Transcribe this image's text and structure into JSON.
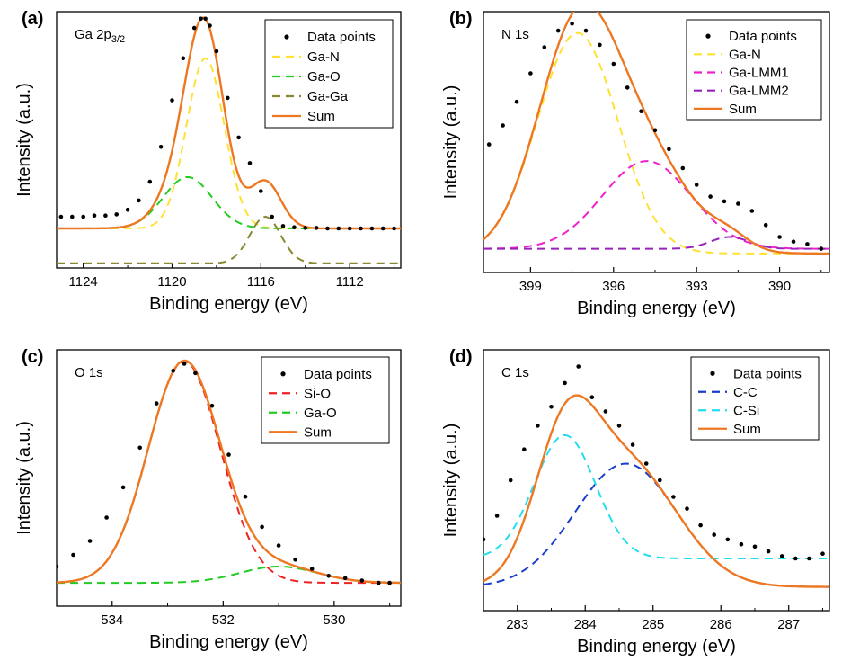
{
  "figure": {
    "panel_letters": [
      "(a)",
      "(b)",
      "(c)",
      "(d)"
    ]
  },
  "chart_data": [
    {
      "type": "scatter",
      "panel": "(a)",
      "region_label": {
        "main": "Ga 2p",
        "sub": "3/2"
      },
      "xlabel": "Binding energy (eV)",
      "ylabel": "Intensity (a.u.)",
      "xlim": [
        1125.2,
        1109.7
      ],
      "ylim": [
        0,
        1.1
      ],
      "xticks": [
        1124,
        1120,
        1116,
        1112
      ],
      "x_reversed": true,
      "legend_position": "top-right",
      "legend": [
        "Data points",
        "Ga-N",
        "Ga-O",
        "Ga-Ga",
        "Sum"
      ],
      "data_points": {
        "name": "Data points",
        "color": "#000000",
        "x": [
          1125,
          1124.5,
          1124,
          1123.5,
          1123,
          1122.5,
          1122,
          1121.5,
          1121,
          1120.5,
          1120,
          1119.5,
          1119,
          1118.7,
          1118.5,
          1118.3,
          1118,
          1117.5,
          1117,
          1116.5,
          1116,
          1115.5,
          1115,
          1114.5,
          1114,
          1113.5,
          1113,
          1112.5,
          1112,
          1111.5,
          1111,
          1110.5,
          1110
        ],
        "y": [
          0.22,
          0.22,
          0.22,
          0.225,
          0.225,
          0.23,
          0.25,
          0.29,
          0.37,
          0.52,
          0.72,
          0.9,
          1.03,
          1.07,
          1.07,
          1.04,
          0.93,
          0.73,
          0.56,
          0.45,
          0.33,
          0.22,
          0.18,
          0.175,
          0.172,
          0.172,
          0.17,
          0.17,
          0.17,
          0.17,
          0.17,
          0.17,
          0.17
        ]
      },
      "series": [
        {
          "name": "Ga-N",
          "color": "#ffe033",
          "dash": true,
          "peak": {
            "center": 1118.5,
            "amplitude": 0.73,
            "width": 0.85
          },
          "offset": 0.17
        },
        {
          "name": "Ga-O",
          "color": "#22cc22",
          "dash": true,
          "peak": {
            "center": 1119.3,
            "amplitude": 0.22,
            "width": 1.1
          },
          "offset": 0.17
        },
        {
          "name": "Ga-Ga",
          "color": "#888833",
          "dash": true,
          "peak": {
            "center": 1115.8,
            "amplitude": 0.2,
            "width": 0.7
          },
          "offset": 0.02
        },
        {
          "name": "Sum",
          "color": "#ee7722",
          "dash": false,
          "sum_of": [
            "Ga-N",
            "Ga-O",
            "Ga-Ga"
          ]
        }
      ]
    },
    {
      "type": "scatter",
      "panel": "(b)",
      "region_label": {
        "main": "N 1s",
        "sub": ""
      },
      "xlabel": "Binding energy (eV)",
      "ylabel": "Intensity (a.u.)",
      "xlim": [
        400.7,
        388.2
      ],
      "ylim": [
        0,
        1.1
      ],
      "xticks": [
        399,
        396,
        393,
        390
      ],
      "x_reversed": true,
      "legend_position": "top-right",
      "legend": [
        "Data points",
        "Ga-N",
        "Ga-LMM1",
        "Ga-LMM2",
        "Sum"
      ],
      "data_points": {
        "name": "Data points",
        "color": "#000000",
        "x": [
          400.5,
          400,
          399.5,
          399,
          398.5,
          398,
          397.5,
          397,
          396.5,
          396,
          395.5,
          395,
          394.5,
          394,
          393.5,
          393,
          392.5,
          392,
          391.5,
          391,
          390.5,
          390,
          389.5,
          389,
          388.5
        ],
        "y": [
          0.54,
          0.62,
          0.72,
          0.84,
          0.95,
          1.02,
          1.05,
          1.02,
          0.96,
          0.88,
          0.78,
          0.68,
          0.6,
          0.52,
          0.44,
          0.37,
          0.32,
          0.3,
          0.29,
          0.26,
          0.2,
          0.15,
          0.13,
          0.12,
          0.1
        ]
      },
      "series": [
        {
          "name": "Ga-N",
          "color": "#ffe033",
          "dash": true,
          "peak": {
            "center": 397.3,
            "amplitude": 0.93,
            "width": 1.45
          },
          "offset": 0.08
        },
        {
          "name": "Ga-LMM1",
          "color": "#ee22cc",
          "dash": true,
          "peak": {
            "center": 394.8,
            "amplitude": 0.37,
            "width": 1.6
          },
          "offset": 0.1
        },
        {
          "name": "Ga-LMM2",
          "color": "#9922bb",
          "dash": true,
          "peak": {
            "center": 391.8,
            "amplitude": 0.05,
            "width": 0.7
          },
          "offset": 0.1
        },
        {
          "name": "Sum",
          "color": "#ee7722",
          "dash": false,
          "sum_of": [
            "Ga-N",
            "Ga-LMM1",
            "Ga-LMM2"
          ]
        }
      ]
    },
    {
      "type": "scatter",
      "panel": "(c)",
      "region_label": {
        "main": "O 1s",
        "sub": ""
      },
      "xlabel": "Binding energy (eV)",
      "ylabel": "Intensity (a.u.)",
      "xlim": [
        535,
        528.8
      ],
      "ylim": [
        0,
        1.1
      ],
      "xticks": [
        534,
        532,
        530
      ],
      "x_reversed": true,
      "legend_position": "top-right",
      "legend": [
        "Data points",
        "Si-O",
        "Ga-O",
        "Sum"
      ],
      "data_points": {
        "name": "Data points",
        "color": "#000000",
        "x": [
          535,
          534.7,
          534.4,
          534.1,
          533.8,
          533.5,
          533.2,
          532.9,
          532.7,
          532.5,
          532.2,
          531.9,
          531.6,
          531.3,
          531,
          530.7,
          530.4,
          530.1,
          529.8,
          529.5,
          529.2,
          529
        ],
        "y": [
          0.17,
          0.22,
          0.28,
          0.38,
          0.51,
          0.68,
          0.87,
          1.01,
          1.04,
          1.0,
          0.86,
          0.65,
          0.47,
          0.34,
          0.26,
          0.2,
          0.16,
          0.13,
          0.12,
          0.11,
          0.1,
          0.1
        ]
      },
      "series": [
        {
          "name": "Si-O",
          "color": "#ee2222",
          "dash": true,
          "peak": {
            "center": 532.7,
            "amplitude": 0.95,
            "width": 0.65
          },
          "offset": 0.1
        },
        {
          "name": "Ga-O",
          "color": "#22cc22",
          "dash": true,
          "peak": {
            "center": 531,
            "amplitude": 0.07,
            "width": 0.7
          },
          "offset": 0.1
        },
        {
          "name": "Sum",
          "color": "#ee7722",
          "dash": false,
          "sum_of": [
            "Si-O",
            "Ga-O"
          ]
        }
      ]
    },
    {
      "type": "scatter",
      "panel": "(d)",
      "region_label": {
        "main": "C 1s",
        "sub": ""
      },
      "xlabel": "Binding energy (eV)",
      "ylabel": "Intensity (a.u.)",
      "xlim": [
        282.5,
        287.6
      ],
      "ylim": [
        0,
        1.1
      ],
      "xticks": [
        283,
        284,
        285,
        286,
        287
      ],
      "x_reversed": false,
      "legend_position": "top-right",
      "legend": [
        "Data points",
        "C-C",
        "C-Si",
        "Sum"
      ],
      "data_points": {
        "name": "Data points",
        "color": "#000000",
        "x": [
          282.5,
          282.7,
          282.9,
          283.1,
          283.3,
          283.5,
          283.7,
          283.9,
          284.1,
          284.3,
          284.5,
          284.7,
          284.9,
          285.1,
          285.3,
          285.5,
          285.7,
          285.9,
          286.1,
          286.3,
          286.5,
          286.7,
          286.9,
          287.1,
          287.3,
          287.5
        ],
        "y": [
          0.3,
          0.4,
          0.55,
          0.68,
          0.78,
          0.86,
          0.96,
          1.03,
          0.9,
          0.84,
          0.78,
          0.7,
          0.62,
          0.55,
          0.48,
          0.43,
          0.36,
          0.32,
          0.3,
          0.28,
          0.27,
          0.25,
          0.23,
          0.22,
          0.22,
          0.24
        ]
      },
      "series": [
        {
          "name": "C-C",
          "color": "#1a3ec9",
          "dash": true,
          "peak": {
            "center": 284.6,
            "amplitude": 0.52,
            "width": 0.75
          },
          "offset": 0.1
        },
        {
          "name": "C-Si",
          "color": "#22ddee",
          "dash": true,
          "peak": {
            "center": 283.7,
            "amplitude": 0.52,
            "width": 0.45
          },
          "offset": 0.22
        },
        {
          "name": "Sum",
          "color": "#ee7722",
          "dash": false,
          "sum_of": [
            "C-C",
            "C-Si"
          ]
        }
      ]
    }
  ]
}
